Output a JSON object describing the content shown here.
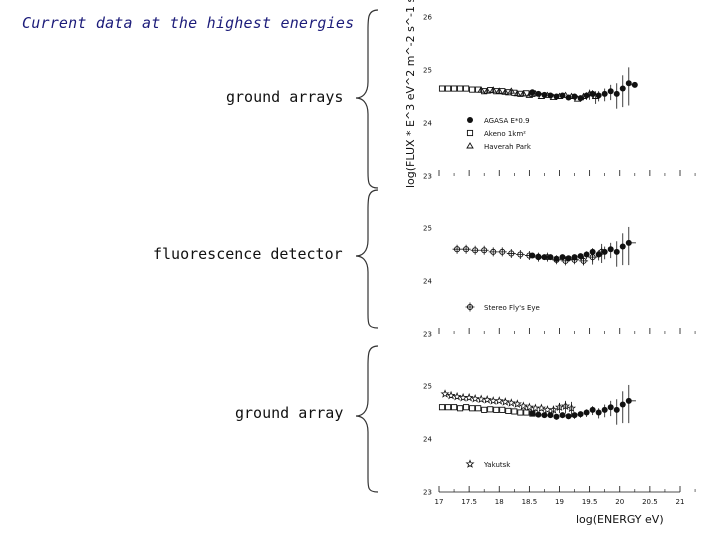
{
  "slide": {
    "title": "Current data at the highest energies",
    "side_labels": [
      "ground arrays",
      "fluorescence detector",
      "ground array"
    ]
  },
  "chart_data": {
    "type": "scatter",
    "xlabel": "log(ENERGY eV)",
    "ylabel": "log(FLUX * E^3 eV^2 m^-2 s^-1 sr^-1)",
    "xlim": [
      17,
      21
    ],
    "ylim": [
      23,
      26
    ],
    "x_ticks": [
      "17",
      "17.5",
      "18",
      "18.5",
      "19",
      "19.5",
      "20",
      "20.5",
      "21"
    ],
    "panels": [
      {
        "y_ticks": [
          "26",
          "25",
          "24",
          "23"
        ],
        "legend": [
          "AGASA E*0.9",
          "Akeno 1km²",
          "Haverah Park"
        ],
        "series": [
          {
            "name": "AGASA E*0.9",
            "marker": "filled-circle",
            "x": [
              18.55,
              18.65,
              18.75,
              18.85,
              18.95,
              19.05,
              19.15,
              19.25,
              19.35,
              19.45,
              19.55,
              19.65,
              19.75,
              19.85,
              19.95,
              20.05,
              20.15,
              20.25
            ],
            "y": [
              24.58,
              24.55,
              24.53,
              24.52,
              24.5,
              24.52,
              24.48,
              24.5,
              24.47,
              24.52,
              24.55,
              24.52,
              24.55,
              24.6,
              24.55,
              24.65,
              24.75,
              24.72
            ],
            "err": [
              0.03,
              0.03,
              0.03,
              0.03,
              0.04,
              0.04,
              0.04,
              0.05,
              0.05,
              0.06,
              0.07,
              0.08,
              0.1,
              0.12,
              0.2,
              0.25,
              0.3,
              0.0
            ]
          },
          {
            "name": "Akeno 1km²",
            "marker": "open-square",
            "x": [
              17.05,
              17.15,
              17.25,
              17.35,
              17.45,
              17.55,
              17.65,
              17.75,
              17.85,
              17.95,
              18.05,
              18.15,
              18.25,
              18.35,
              18.45,
              18.55
            ],
            "y": [
              24.65,
              24.65,
              24.65,
              24.65,
              24.65,
              24.63,
              24.63,
              24.6,
              24.62,
              24.6,
              24.6,
              24.58,
              24.57,
              24.55,
              24.56,
              24.55
            ],
            "err": [
              0,
              0,
              0,
              0,
              0,
              0,
              0,
              0,
              0,
              0,
              0,
              0,
              0,
              0,
              0,
              0
            ]
          },
          {
            "name": "Haverah Park",
            "marker": "open-triangle",
            "x": [
              17.7,
              17.8,
              17.9,
              18.0,
              18.1,
              18.2,
              18.3,
              18.4,
              18.5,
              18.6,
              18.7,
              18.8,
              18.9,
              19.0,
              19.1,
              19.2,
              19.3,
              19.4,
              19.5,
              19.6
            ],
            "y": [
              24.62,
              24.6,
              24.62,
              24.6,
              24.58,
              24.6,
              24.55,
              24.55,
              24.52,
              24.55,
              24.5,
              24.52,
              24.48,
              24.5,
              24.52,
              24.5,
              24.45,
              24.5,
              24.55,
              24.5
            ],
            "err": [
              0,
              0,
              0,
              0,
              0,
              0,
              0,
              0,
              0,
              0,
              0,
              0,
              0,
              0,
              0,
              0,
              0,
              0.05,
              0.08,
              0.1
            ]
          }
        ]
      },
      {
        "y_ticks": [
          "25",
          "24",
          "23"
        ],
        "legend": [
          "Stereo Fly's Eye"
        ],
        "series": [
          {
            "name": "Stereo Fly's Eye",
            "marker": "open-circle-cross",
            "x": [
              17.3,
              17.45,
              17.6,
              17.75,
              17.9,
              18.05,
              18.2,
              18.35,
              18.5,
              18.65,
              18.8,
              18.95,
              19.1,
              19.25,
              19.4,
              19.55,
              19.7
            ],
            "y": [
              24.6,
              24.6,
              24.58,
              24.58,
              24.55,
              24.55,
              24.52,
              24.5,
              24.48,
              24.45,
              24.45,
              24.4,
              24.38,
              24.4,
              24.38,
              24.45,
              24.55
            ],
            "err": [
              0,
              0,
              0,
              0,
              0,
              0,
              0,
              0,
              0,
              0,
              0,
              0,
              0,
              0,
              0.06,
              0.1,
              0.15
            ]
          },
          {
            "name": "",
            "marker": "filled-circle",
            "x": [
              18.55,
              18.65,
              18.75,
              18.85,
              18.95,
              19.05,
              19.15,
              19.25,
              19.35,
              19.45,
              19.55,
              19.65,
              19.75,
              19.85,
              19.95,
              20.05,
              20.15
            ],
            "y": [
              24.48,
              24.46,
              24.45,
              24.45,
              24.42,
              24.45,
              24.43,
              24.45,
              24.47,
              24.5,
              24.55,
              24.5,
              24.55,
              24.6,
              24.55,
              24.65,
              24.72
            ],
            "err": [
              0.03,
              0.03,
              0.03,
              0.03,
              0.04,
              0.04,
              0.04,
              0.05,
              0.05,
              0.06,
              0.07,
              0.08,
              0.1,
              0.12,
              0.2,
              0.25,
              0.3
            ]
          }
        ]
      },
      {
        "y_ticks": [
          "25",
          "24",
          "23"
        ],
        "legend": [
          "Yakutsk"
        ],
        "series": [
          {
            "name": "Yakutsk",
            "marker": "open-star",
            "x": [
              17.1,
              17.2,
              17.3,
              17.4,
              17.5,
              17.6,
              17.7,
              17.8,
              17.9,
              18.0,
              18.1,
              18.2,
              18.3,
              18.4,
              18.5,
              18.6,
              18.7,
              18.8,
              18.9,
              19.0,
              19.1,
              19.2
            ],
            "y": [
              24.85,
              24.82,
              24.8,
              24.78,
              24.78,
              24.76,
              24.75,
              24.74,
              24.72,
              24.72,
              24.7,
              24.68,
              24.66,
              24.62,
              24.6,
              24.58,
              24.58,
              24.55,
              24.55,
              24.6,
              24.62,
              24.58
            ],
            "err": [
              0,
              0,
              0,
              0,
              0,
              0,
              0,
              0,
              0,
              0,
              0,
              0,
              0,
              0,
              0,
              0,
              0,
              0,
              0.05,
              0.08,
              0.1,
              0.12
            ]
          },
          {
            "name": "",
            "marker": "open-square",
            "x": [
              17.05,
              17.15,
              17.25,
              17.35,
              17.45,
              17.55,
              17.65,
              17.75,
              17.85,
              17.95,
              18.05,
              18.15,
              18.25,
              18.35,
              18.45,
              18.55
            ],
            "y": [
              24.6,
              24.6,
              24.6,
              24.58,
              24.6,
              24.58,
              24.58,
              24.55,
              24.56,
              24.55,
              24.55,
              24.53,
              24.52,
              24.5,
              24.5,
              24.48
            ],
            "err": [
              0,
              0,
              0,
              0,
              0,
              0,
              0,
              0,
              0,
              0,
              0,
              0,
              0,
              0,
              0,
              0
            ]
          },
          {
            "name": "",
            "marker": "filled-circle",
            "x": [
              18.55,
              18.65,
              18.75,
              18.85,
              18.95,
              19.05,
              19.15,
              19.25,
              19.35,
              19.45,
              19.55,
              19.65,
              19.75,
              19.85,
              19.95,
              20.05,
              20.15
            ],
            "y": [
              24.48,
              24.46,
              24.45,
              24.45,
              24.42,
              24.45,
              24.43,
              24.45,
              24.47,
              24.5,
              24.55,
              24.5,
              24.55,
              24.6,
              24.55,
              24.65,
              24.72
            ],
            "err": [
              0.03,
              0.03,
              0.03,
              0.03,
              0.04,
              0.04,
              0.04,
              0.05,
              0.05,
              0.06,
              0.07,
              0.08,
              0.1,
              0.12,
              0.2,
              0.25,
              0.3
            ]
          }
        ]
      }
    ]
  },
  "colors": {
    "title": "#1c1c7a",
    "ink": "#111111",
    "background": "#ffffff"
  }
}
